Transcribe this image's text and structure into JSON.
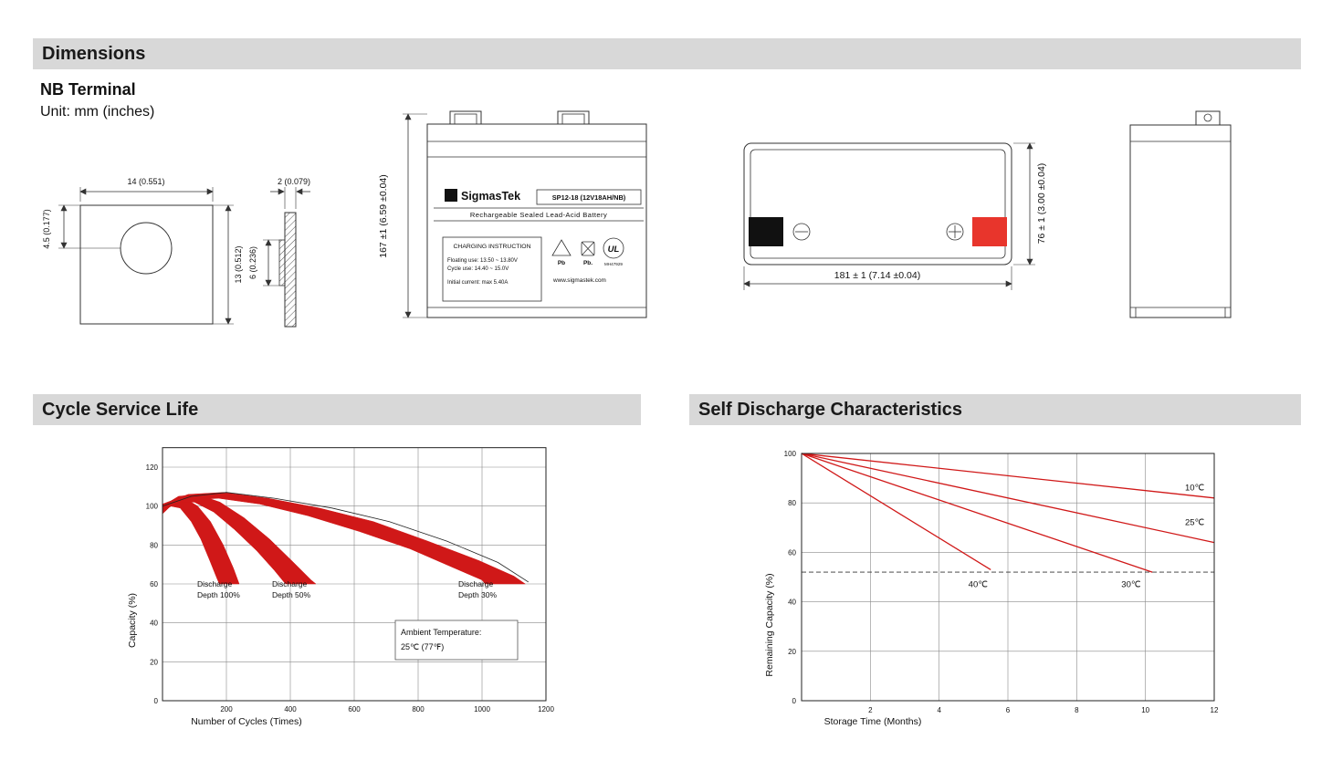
{
  "colors": {
    "header_bg": "#d8d8d8",
    "chart_red": "#d01818",
    "terminal_red": "#e8352c",
    "terminal_black": "#111111"
  },
  "headers": {
    "dimensions": "Dimensions",
    "cycle": "Cycle Service Life",
    "self_discharge": "Self Discharge Characteristics"
  },
  "terminal": {
    "heading": "NB Terminal",
    "unit": "Unit: mm (inches)",
    "width_dim": "14 (0.551)",
    "hole_dim": "4.5 (0.177)",
    "height_dim": "13 (0.512)",
    "thickness_dim": "2 (0.079)",
    "mid_dim": "6 (0.236)"
  },
  "front_view": {
    "height_dim": "167 ±1 (6.59 ±0.04)",
    "sigma": "Σ",
    "brand": "SigmasTek",
    "model": "SP12-18 (12V18AH/NB)",
    "subtitle": "Rechargeable Sealed Lead-Acid Battery",
    "charging_title": "CHARGING INSTRUCTION",
    "charging_line1": "Floating use: 13.50 ~ 13.80V",
    "charging_line2": "Cycle use: 14.40 ~ 15.0V",
    "charging_line3": "Initial current: max 5.40A",
    "pb1": "Pb",
    "pb2": "Pb.",
    "ul_text": "UL",
    "ul_code": "MH47929",
    "website": "www.sigmastek.com"
  },
  "top_view": {
    "width_dim": "181 ± 1 (7.14 ±0.04)",
    "height_dim": "76 ± 1 (3.00 ±0.04)"
  },
  "chart_data": [
    {
      "type": "area",
      "title": "Cycle Service Life",
      "xlabel": "Number of Cycles (Times)",
      "ylabel": "Capacity (%)",
      "xlim": [
        0,
        1200
      ],
      "ylim": [
        0,
        130
      ],
      "xticks": [
        200,
        400,
        600,
        800,
        1000,
        1200
      ],
      "yticks": [
        0,
        20,
        40,
        60,
        80,
        100,
        120
      ],
      "grid": true,
      "ambient_note": [
        "Ambient Temperature:",
        "25℃ (77℉)"
      ],
      "envelope_color": "#222222",
      "envelope": [
        [
          0,
          100
        ],
        [
          90,
          105
        ],
        [
          200,
          107
        ],
        [
          350,
          104
        ],
        [
          530,
          99
        ],
        [
          710,
          92
        ],
        [
          890,
          82
        ],
        [
          1050,
          71
        ],
        [
          1145,
          61
        ]
      ],
      "series": [
        {
          "name": "Discharge Depth 100%",
          "label_lines": [
            "Discharge",
            "Depth 100%"
          ],
          "color": "#d01818",
          "upper": [
            [
              0,
              99
            ],
            [
              30,
              103
            ],
            [
              70,
              104
            ],
            [
              110,
              100
            ],
            [
              150,
              92
            ],
            [
              190,
              80
            ],
            [
              222,
              68
            ],
            [
              240,
              60
            ]
          ],
          "lower": [
            [
              0,
              96
            ],
            [
              25,
              100
            ],
            [
              55,
              99
            ],
            [
              90,
              92
            ],
            [
              120,
              83
            ],
            [
              148,
              72
            ],
            [
              170,
              63
            ],
            [
              178,
              60
            ]
          ]
        },
        {
          "name": "Discharge Depth 50%",
          "label_lines": [
            "Discharge",
            "Depth 50%"
          ],
          "color": "#d01818",
          "upper": [
            [
              0,
              100
            ],
            [
              50,
              105
            ],
            [
              110,
              106
            ],
            [
              180,
              102
            ],
            [
              255,
              94
            ],
            [
              335,
              83
            ],
            [
              410,
              71
            ],
            [
              465,
              62
            ],
            [
              480,
              60
            ]
          ],
          "lower": [
            [
              0,
              97
            ],
            [
              45,
              102
            ],
            [
              100,
              102
            ],
            [
              160,
              97
            ],
            [
              225,
              88
            ],
            [
              295,
              77
            ],
            [
              350,
              67
            ],
            [
              380,
              61
            ],
            [
              385,
              60
            ]
          ]
        },
        {
          "name": "Discharge Depth 30%",
          "label_lines": [
            "Discharge",
            "Depth 30%"
          ],
          "color": "#d01818",
          "upper": [
            [
              0,
              101
            ],
            [
              80,
              106
            ],
            [
              190,
              107
            ],
            [
              330,
              104
            ],
            [
              490,
              99
            ],
            [
              660,
              92
            ],
            [
              830,
              82
            ],
            [
              990,
              72
            ],
            [
              1100,
              64
            ],
            [
              1135,
              60
            ]
          ],
          "lower": [
            [
              0,
              98
            ],
            [
              70,
              103
            ],
            [
              175,
              104
            ],
            [
              305,
              101
            ],
            [
              455,
              95
            ],
            [
              615,
              87
            ],
            [
              775,
              78
            ],
            [
              915,
              68
            ],
            [
              1000,
              62
            ],
            [
              1010,
              60
            ]
          ]
        }
      ]
    },
    {
      "type": "line",
      "title": "Self Discharge Characteristics",
      "xlabel": "Storage Time (Months)",
      "ylabel": "Remaining Capacity (%)",
      "xlim": [
        0,
        12
      ],
      "ylim": [
        0,
        100
      ],
      "xticks": [
        2,
        4,
        6,
        8,
        10,
        12
      ],
      "yticks": [
        0,
        20,
        40,
        60,
        80,
        100
      ],
      "grid": true,
      "dashed_capacity": 52,
      "line_color": "#d01818",
      "series": [
        {
          "name": "10℃",
          "points": [
            [
              0,
              100
            ],
            [
              12,
              82
            ]
          ],
          "label_pos": [
            11.15,
            85
          ]
        },
        {
          "name": "25℃",
          "points": [
            [
              0,
              100
            ],
            [
              12,
              64
            ]
          ],
          "label_pos": [
            11.15,
            71
          ]
        },
        {
          "name": "40℃",
          "points": [
            [
              0,
              100
            ],
            [
              5.5,
              53
            ]
          ],
          "label_pos": [
            4.85,
            46
          ]
        },
        {
          "name": "30℃",
          "points": [
            [
              0,
              100
            ],
            [
              10.2,
              52
            ]
          ],
          "label_pos": [
            9.3,
            46
          ]
        }
      ]
    }
  ]
}
